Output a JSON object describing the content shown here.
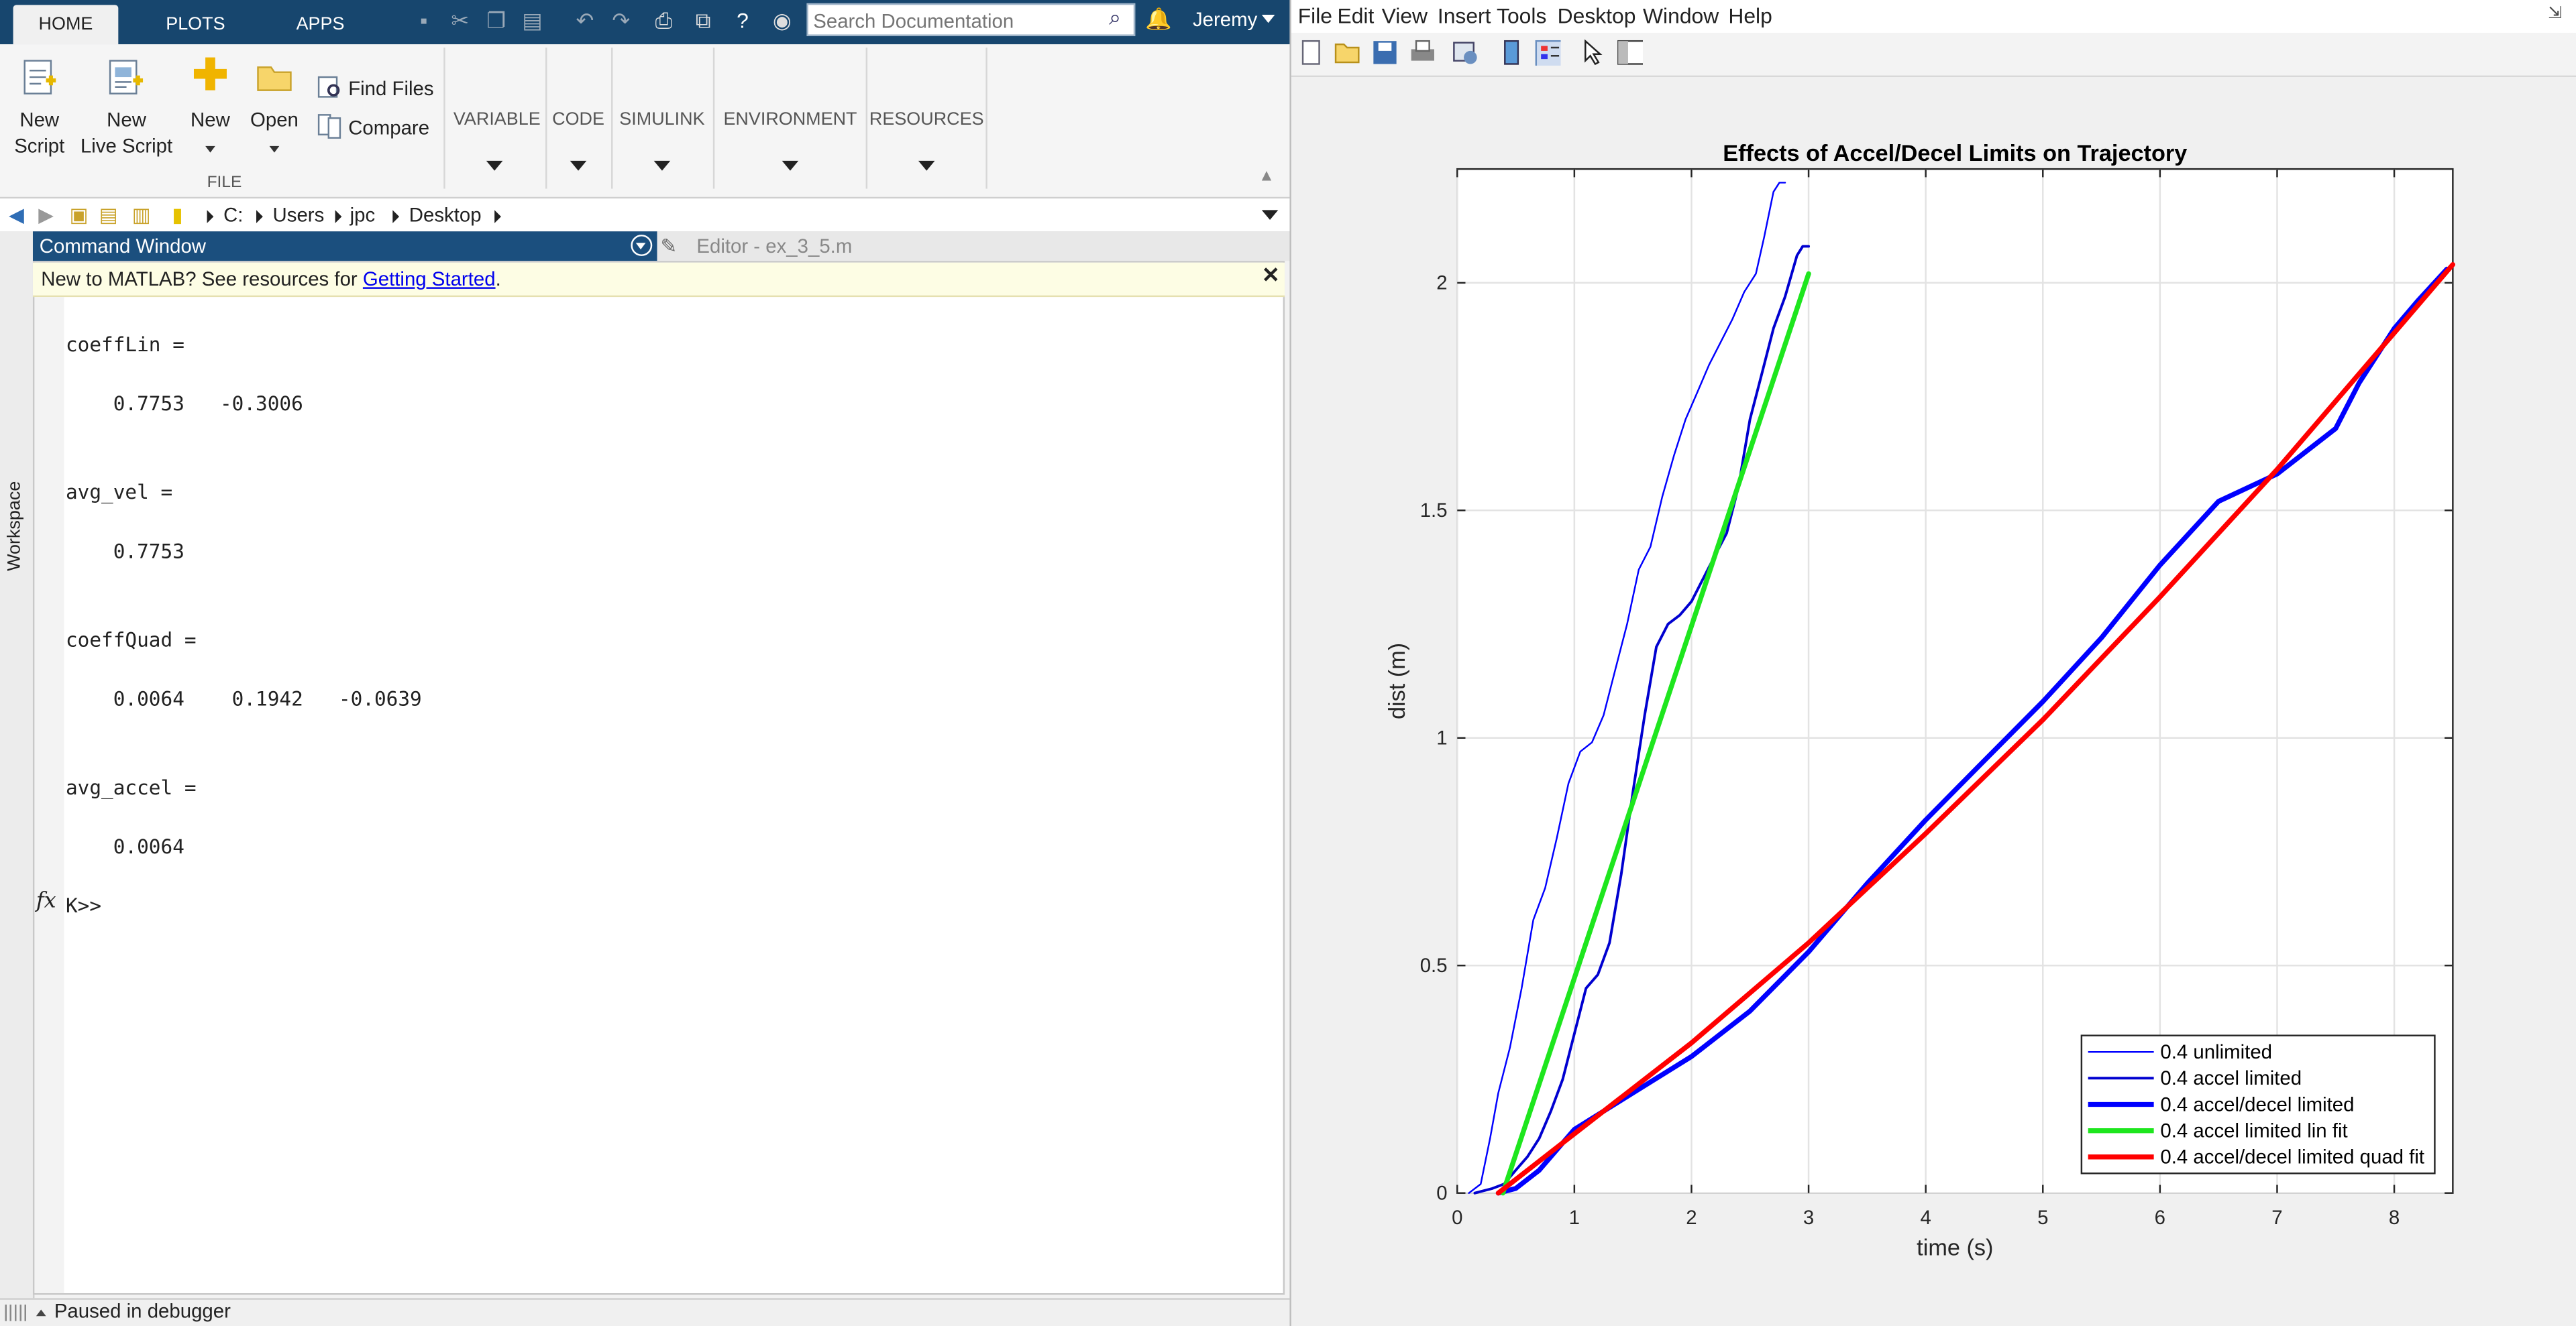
{
  "matlab": {
    "tabs": [
      {
        "label": "HOME",
        "active": true
      },
      {
        "label": "PLOTS",
        "active": false
      },
      {
        "label": "APPS",
        "active": false
      }
    ],
    "search_placeholder": "Search Documentation",
    "user": "Jeremy",
    "ribbon": {
      "new_script": [
        "New",
        "Script"
      ],
      "new_live_script": [
        "New",
        "Live Script"
      ],
      "new": "New",
      "open": "Open",
      "find_files": "Find Files",
      "compare": "Compare",
      "file_group": "FILE",
      "variable": "VARIABLE",
      "code": "CODE",
      "simulink": "SIMULINK",
      "environment": "ENVIRONMENT",
      "resources": "RESOURCES"
    },
    "address": [
      "C:",
      "Users",
      "jpc",
      "Desktop"
    ],
    "workspace_label": "Workspace",
    "command_window_title": "Command Window",
    "editor_tab": "Editor - ex_3_5.m",
    "notice": {
      "prefix": "New to MATLAB? See resources for ",
      "link": "Getting Started",
      "suffix": "."
    },
    "output": [
      "coeffLin =",
      "    0.7753   -0.3006",
      "avg_vel =",
      "    0.7753",
      "coeffQuad =",
      "    0.0064    0.1942   -0.0639",
      "avg_accel =",
      "    0.0064",
      "K>>"
    ],
    "status": "Paused in debugger"
  },
  "figure": {
    "menu": [
      "File",
      "Edit",
      "View",
      "Insert",
      "Tools",
      "Desktop",
      "Window",
      "Help"
    ]
  },
  "chart_data": {
    "type": "line",
    "title": "Effects of Accel/Decel Limits on Trajectory",
    "xlabel": "time (s)",
    "ylabel": "dist (m)",
    "xlim": [
      0,
      8.5
    ],
    "ylim": [
      0,
      2.25
    ],
    "xticks": [
      0,
      1,
      2,
      3,
      4,
      5,
      6,
      7,
      8
    ],
    "yticks": [
      0,
      0.5,
      1,
      1.5,
      2
    ],
    "ytick_labels": [
      "0",
      "0.5",
      "1",
      "1.5",
      "2"
    ],
    "grid": true,
    "legend_position": "bottom-right",
    "series": [
      {
        "name": "0.4 unlimited",
        "color": "#0000ff",
        "width": "thin",
        "x": [
          0.1,
          0.2,
          0.28,
          0.35,
          0.45,
          0.55,
          0.65,
          0.75,
          0.85,
          0.95,
          1.05,
          1.15,
          1.25,
          1.35,
          1.45,
          1.55,
          1.65,
          1.75,
          1.85,
          1.95,
          2.05,
          2.15,
          2.25,
          2.35,
          2.45,
          2.55,
          2.62,
          2.7,
          2.75,
          2.8
        ],
        "y": [
          0,
          0.02,
          0.12,
          0.22,
          0.32,
          0.45,
          0.6,
          0.67,
          0.78,
          0.9,
          0.97,
          0.99,
          1.05,
          1.15,
          1.25,
          1.37,
          1.42,
          1.53,
          1.62,
          1.7,
          1.76,
          1.82,
          1.87,
          1.92,
          1.98,
          2.02,
          2.1,
          2.2,
          2.22,
          2.22
        ]
      },
      {
        "name": "0.4 accel limited",
        "color": "#0000d0",
        "width": "medium",
        "x": [
          0.15,
          0.3,
          0.4,
          0.5,
          0.6,
          0.7,
          0.8,
          0.9,
          1.0,
          1.1,
          1.2,
          1.3,
          1.4,
          1.5,
          1.6,
          1.7,
          1.8,
          1.9,
          2.0,
          2.1,
          2.2,
          2.3,
          2.4,
          2.5,
          2.6,
          2.7,
          2.8,
          2.9,
          2.95,
          3.0
        ],
        "y": [
          0,
          0.01,
          0.02,
          0.05,
          0.08,
          0.12,
          0.18,
          0.25,
          0.35,
          0.45,
          0.48,
          0.55,
          0.7,
          0.88,
          1.05,
          1.2,
          1.25,
          1.27,
          1.3,
          1.35,
          1.4,
          1.45,
          1.55,
          1.7,
          1.8,
          1.9,
          1.97,
          2.06,
          2.08,
          2.08
        ]
      },
      {
        "name": "0.4 accel/decel limited",
        "color": "#0000ff",
        "width": "thick",
        "x": [
          0.35,
          0.5,
          0.7,
          1.0,
          1.5,
          2.0,
          2.5,
          3.0,
          3.5,
          4.0,
          4.5,
          5.0,
          5.5,
          6.0,
          6.5,
          7.0,
          7.5,
          7.7,
          8.0,
          8.2,
          8.45
        ],
        "y": [
          0.0,
          0.01,
          0.05,
          0.14,
          0.22,
          0.3,
          0.4,
          0.53,
          0.68,
          0.82,
          0.95,
          1.08,
          1.22,
          1.38,
          1.52,
          1.58,
          1.68,
          1.78,
          1.9,
          1.96,
          2.03
        ]
      },
      {
        "name": "0.4 accel limited lin fit",
        "color": "#1ee61e",
        "width": "thick",
        "x": [
          0.39,
          3.0
        ],
        "y": [
          0.0,
          2.02
        ]
      },
      {
        "name": "0.4 accel/decel limited quad fit",
        "color": "#ff0000",
        "width": "thick",
        "x": [
          0.35,
          1.0,
          2.0,
          3.0,
          4.0,
          5.0,
          6.0,
          7.0,
          8.0,
          8.5
        ],
        "y": [
          0.0,
          0.13,
          0.33,
          0.55,
          0.79,
          1.04,
          1.31,
          1.59,
          1.89,
          2.04
        ]
      }
    ]
  }
}
